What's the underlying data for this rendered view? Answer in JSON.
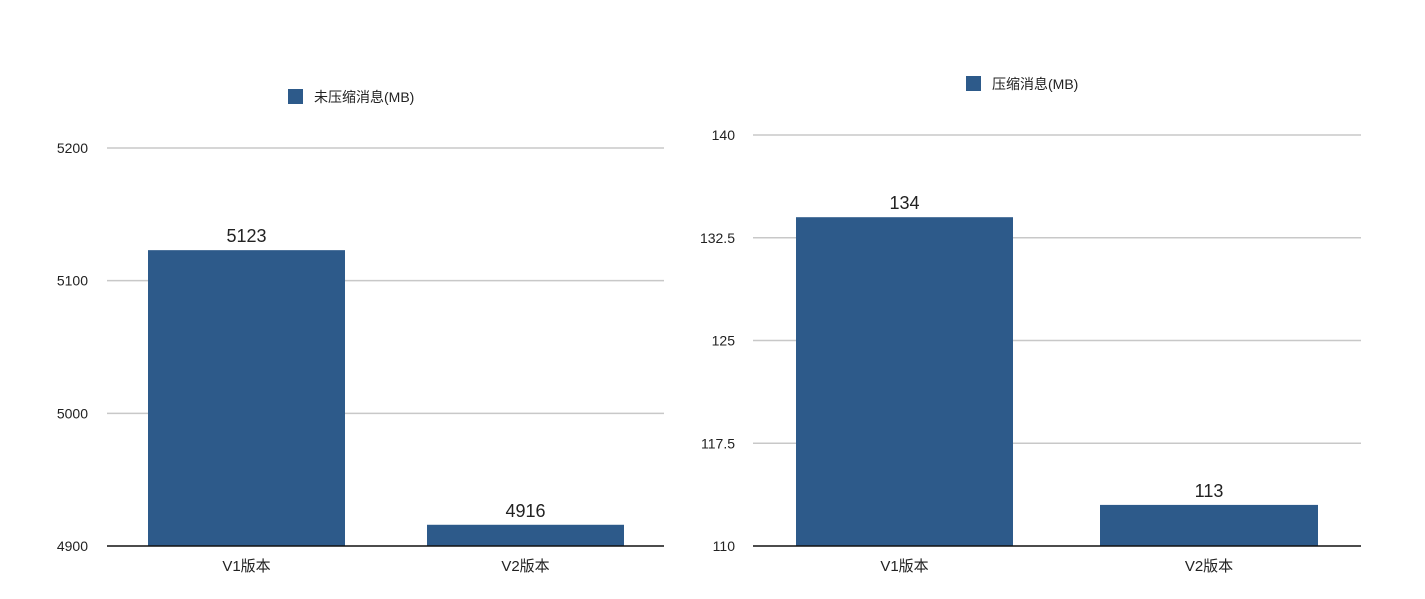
{
  "chart_data": [
    {
      "type": "bar",
      "legend": "未压缩消息(MB)",
      "legend_placement": "top",
      "categories": [
        "V1版本",
        "V2版本"
      ],
      "values": [
        5123,
        4916
      ],
      "data_labels": [
        "5123",
        "4916"
      ],
      "ylim": [
        4900,
        5200
      ],
      "yticks": [
        4900,
        5000,
        5100,
        5200
      ],
      "ytick_labels": [
        "4900",
        "5000",
        "5100",
        "5200"
      ],
      "grid": true,
      "color": "#2d5a8a"
    },
    {
      "type": "bar",
      "legend": "压缩消息(MB)",
      "legend_placement": "top",
      "categories": [
        "V1版本",
        "V2版本"
      ],
      "values": [
        134,
        113
      ],
      "data_labels": [
        "134",
        "113"
      ],
      "ylim": [
        110,
        140
      ],
      "yticks": [
        110,
        117.5,
        125,
        132.5,
        140
      ],
      "ytick_labels": [
        "110",
        "117.5",
        "125",
        "132.5",
        "140"
      ],
      "grid": true,
      "color": "#2d5a8a"
    }
  ]
}
